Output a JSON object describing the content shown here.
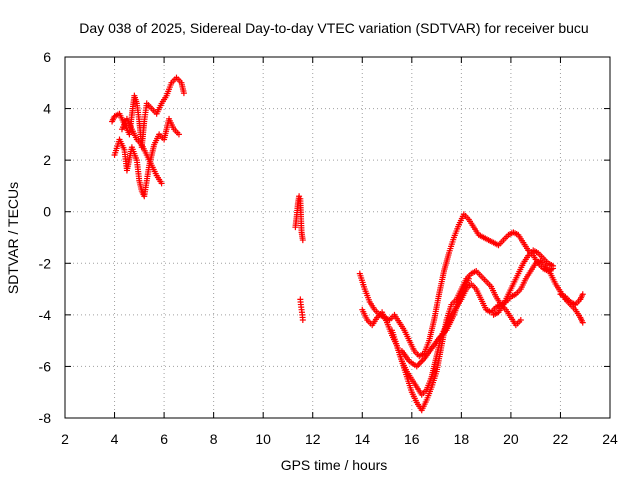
{
  "chart_data": {
    "type": "scatter",
    "title": "Day 038 of 2025, Sidereal Day-to-day VTEC variation (SDTVAR) for receiver bucu",
    "xlabel": "GPS time / hours",
    "ylabel": "SDTVAR / TECUs",
    "xlim": [
      2,
      24
    ],
    "ylim": [
      -8,
      6
    ],
    "xticks": [
      "2",
      "4",
      "6",
      "8",
      "10",
      "12",
      "14",
      "16",
      "18",
      "20",
      "22",
      "24"
    ],
    "yticks": [
      "6",
      "4",
      "2",
      "0",
      "-2",
      "-4",
      "-6",
      "-8"
    ],
    "grid": true,
    "marker": "plus",
    "color": "#ff0000",
    "series": [
      {
        "x": [
          3.9,
          4.0,
          4.2,
          4.4,
          4.6,
          4.8,
          4.9,
          5.0,
          5.1,
          5.2,
          5.3,
          5.5,
          5.7,
          5.9,
          6.1,
          6.3,
          6.5,
          6.7,
          6.8
        ],
        "y": [
          3.5,
          3.7,
          3.8,
          3.4,
          3.0,
          4.5,
          4.2,
          3.5,
          2.5,
          3.5,
          4.2,
          4.0,
          3.8,
          4.2,
          4.5,
          5.0,
          5.2,
          5.0,
          4.6
        ]
      },
      {
        "x": [
          4.0,
          4.2,
          4.4,
          4.5,
          4.7,
          4.9,
          5.0,
          5.1,
          5.2,
          5.4,
          5.6,
          5.8,
          6.0,
          6.2,
          6.4,
          6.6
        ],
        "y": [
          2.2,
          2.8,
          2.4,
          1.6,
          2.5,
          2.0,
          1.2,
          0.8,
          0.6,
          1.8,
          2.6,
          3.0,
          2.8,
          3.6,
          3.2,
          3.0
        ]
      },
      {
        "x": [
          4.3,
          4.5,
          4.7,
          4.9,
          5.1,
          5.3,
          5.5,
          5.7,
          5.9
        ],
        "y": [
          3.2,
          3.6,
          3.2,
          2.8,
          2.6,
          2.2,
          1.8,
          1.4,
          1.1
        ]
      },
      {
        "x": [
          11.3,
          11.35,
          11.4,
          11.45,
          11.5,
          11.55,
          11.6
        ],
        "y": [
          -0.6,
          -0.2,
          0.3,
          0.6,
          0.5,
          -0.8,
          -1.1
        ]
      },
      {
        "x": [
          11.5,
          11.52,
          11.55,
          11.58,
          11.6
        ],
        "y": [
          -3.4,
          -3.6,
          -3.8,
          -4.0,
          -4.2
        ]
      },
      {
        "x": [
          13.9,
          14.1,
          14.3,
          14.5,
          14.7,
          14.9,
          15.1,
          15.3,
          15.5,
          15.7,
          15.9,
          16.1,
          16.3,
          16.5,
          16.7,
          16.9,
          17.1,
          17.3,
          17.5,
          17.7,
          17.9,
          18.1,
          18.3,
          18.5,
          18.7,
          18.9,
          19.1,
          19.3,
          19.5,
          19.7,
          19.9,
          20.1,
          20.3,
          20.5,
          20.7,
          20.9,
          21.1,
          21.3,
          21.5,
          21.7
        ],
        "y": [
          -2.4,
          -3.0,
          -3.5,
          -3.8,
          -4.0,
          -4.1,
          -4.2,
          -4.0,
          -4.3,
          -4.6,
          -5.0,
          -5.4,
          -5.6,
          -5.5,
          -5.0,
          -4.2,
          -3.2,
          -2.3,
          -1.6,
          -1.0,
          -0.5,
          -0.1,
          -0.3,
          -0.6,
          -0.9,
          -1.0,
          -1.1,
          -1.2,
          -1.3,
          -1.1,
          -0.9,
          -0.8,
          -0.9,
          -1.2,
          -1.5,
          -1.7,
          -2.0,
          -2.2,
          -2.3,
          -2.2
        ]
      },
      {
        "x": [
          14.0,
          14.2,
          14.4,
          14.6,
          14.8,
          15.0,
          15.2,
          15.4,
          15.6,
          15.8,
          16.0,
          16.2,
          16.4,
          16.6,
          16.8,
          17.0,
          17.2,
          17.4,
          17.6,
          17.8,
          18.0,
          18.2,
          18.4,
          18.6,
          18.8,
          19.0,
          19.2,
          19.4,
          19.6,
          19.8,
          20.0,
          20.2,
          20.4
        ],
        "y": [
          -3.8,
          -4.2,
          -4.4,
          -4.1,
          -3.9,
          -4.3,
          -4.8,
          -5.2,
          -5.8,
          -6.4,
          -7.0,
          -7.4,
          -7.7,
          -7.3,
          -6.8,
          -6.2,
          -5.2,
          -4.2,
          -3.6,
          -3.4,
          -3.0,
          -2.6,
          -2.4,
          -2.3,
          -2.5,
          -2.7,
          -2.9,
          -3.3,
          -3.6,
          -3.8,
          -4.1,
          -4.4,
          -4.2
        ]
      },
      {
        "x": [
          15.2,
          15.4,
          15.6,
          15.8,
          16.0,
          16.2,
          16.4,
          16.6,
          16.8,
          17.0,
          17.2,
          17.4,
          17.6,
          17.8,
          18.0,
          18.2,
          18.4,
          18.6,
          18.8,
          19.0,
          19.2,
          19.4,
          19.6,
          19.8,
          20.0,
          20.2,
          20.4,
          20.6,
          20.8,
          21.0,
          21.2,
          21.4,
          21.6,
          21.8,
          22.0,
          22.2,
          22.4,
          22.6,
          22.8,
          22.9
        ],
        "y": [
          -4.6,
          -5.2,
          -5.8,
          -6.2,
          -6.5,
          -6.8,
          -7.1,
          -6.9,
          -6.4,
          -5.6,
          -4.8,
          -4.4,
          -4.0,
          -3.7,
          -3.4,
          -3.0,
          -2.8,
          -3.0,
          -3.4,
          -3.8,
          -3.9,
          -3.7,
          -3.6,
          -3.5,
          -3.3,
          -3.2,
          -3.0,
          -2.6,
          -2.3,
          -2.0,
          -1.9,
          -2.1,
          -2.4,
          -2.8,
          -3.1,
          -3.4,
          -3.6,
          -3.8,
          -4.1,
          -4.3
        ]
      },
      {
        "x": [
          15.6,
          15.9,
          16.2,
          16.5,
          16.8,
          17.1,
          17.4,
          17.7,
          18.0,
          18.3
        ],
        "y": [
          -5.4,
          -5.8,
          -6.0,
          -5.7,
          -5.3,
          -4.9,
          -4.6,
          -4.0,
          -3.2,
          -2.6
        ]
      },
      {
        "x": [
          19.3,
          19.5,
          19.7,
          19.9,
          20.1,
          20.3,
          20.5,
          20.7,
          20.9,
          21.1,
          21.3,
          21.5,
          21.7
        ],
        "y": [
          -4.0,
          -3.9,
          -3.6,
          -3.2,
          -2.8,
          -2.4,
          -2.0,
          -1.7,
          -1.5,
          -1.6,
          -1.8,
          -2.0,
          -2.1
        ]
      },
      {
        "x": [
          22.0,
          22.2,
          22.4,
          22.6,
          22.8,
          22.9
        ],
        "y": [
          -3.2,
          -3.3,
          -3.5,
          -3.6,
          -3.4,
          -3.2
        ]
      }
    ]
  }
}
